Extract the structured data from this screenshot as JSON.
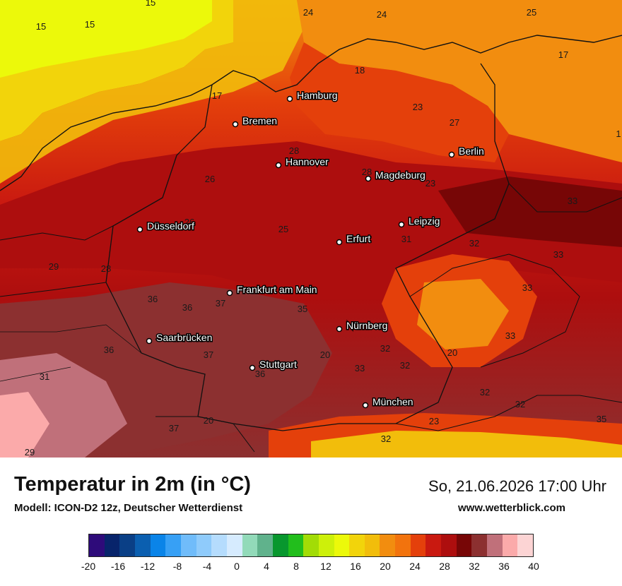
{
  "map": {
    "cities": [
      {
        "name": "Hamburg"
      },
      {
        "name": "Bremen"
      },
      {
        "name": "Hannover"
      },
      {
        "name": "Berlin"
      },
      {
        "name": "Magdeburg"
      },
      {
        "name": "Düsseldorf"
      },
      {
        "name": "Leipzig"
      },
      {
        "name": "Erfurt"
      },
      {
        "name": "Frankfurt am Main"
      },
      {
        "name": "Nürnberg"
      },
      {
        "name": "Saarbrücken"
      },
      {
        "name": "Stuttgart"
      },
      {
        "name": "München"
      }
    ],
    "isotherm_labels": [
      "15",
      "15",
      "15",
      "24",
      "24",
      "25",
      "17",
      "18",
      "23",
      "17",
      "27",
      "28",
      "28",
      "26",
      "23",
      "26",
      "25",
      "33",
      "31",
      "32",
      "29",
      "28",
      "33",
      "36",
      "37",
      "36",
      "35",
      "33",
      "36",
      "37",
      "20",
      "33",
      "32",
      "20",
      "36",
      "31",
      "32",
      "32",
      "23",
      "35",
      "37",
      "20",
      "32",
      "29",
      "33",
      "32",
      "1"
    ]
  },
  "footer": {
    "title": "Temperatur in 2m (in °C)",
    "subtitle": "Modell: ICON-D2 12z, Deutscher Wetterdienst",
    "datetime": "So, 21.06.2026 17:00 Uhr",
    "website": "www.wetterblick.com"
  },
  "legend": {
    "colors": [
      "#2e0b7a",
      "#08246b",
      "#0a3f86",
      "#0b5fb0",
      "#0a84e8",
      "#37a0f5",
      "#70bcfa",
      "#8fcbfb",
      "#b5dcfd",
      "#d6ebfe",
      "#92dab9",
      "#60b28c",
      "#08972e",
      "#22be1c",
      "#a2dc06",
      "#cdf00a",
      "#ecf90a",
      "#f2d40b",
      "#f2bd0b",
      "#f28d0f",
      "#f2730d",
      "#e4400b",
      "#c91910",
      "#ad0e0e",
      "#770606",
      "#8c3030",
      "#c0707a",
      "#fbaaaa",
      "#fcd4d4"
    ],
    "ticks": [
      "-20",
      "-16",
      "-12",
      "-8",
      "-4",
      "0",
      "4",
      "8",
      "12",
      "16",
      "20",
      "24",
      "28",
      "32",
      "36",
      "40"
    ]
  }
}
